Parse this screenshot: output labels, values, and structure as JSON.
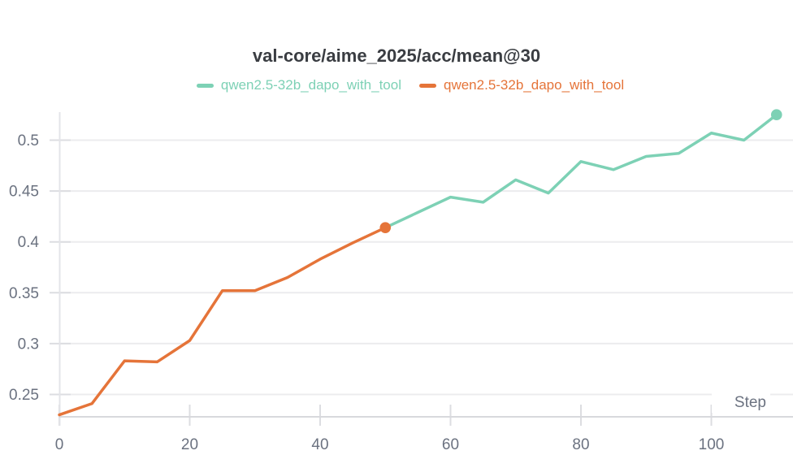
{
  "chart": {
    "title": "val-core/aime_2025/acc/mean@30",
    "x_axis_label": "Step"
  },
  "chart_data": {
    "type": "line",
    "title": "val-core/aime_2025/acc/mean@30",
    "xlabel": "Step",
    "ylabel": "",
    "xlim": [
      0,
      112.5
    ],
    "ylim": [
      0.225,
      0.53
    ],
    "x_ticks": [
      0,
      20,
      40,
      60,
      80,
      100
    ],
    "x_tick_labels": [
      "0",
      "20",
      "40",
      "60",
      "80",
      "100"
    ],
    "y_ticks": [
      0.25,
      0.3,
      0.35,
      0.4,
      0.45,
      0.5
    ],
    "y_tick_labels": [
      "0.25",
      "0.3",
      "0.35",
      "0.4",
      "0.45",
      "0.5"
    ],
    "grid": "horizontal-only",
    "legend_position": "top-center",
    "series": [
      {
        "name": "qwen2.5-32b_dapo_with_tool",
        "color": "#7dd1b5",
        "end_marker": true,
        "x": [
          50,
          55,
          60,
          65,
          70,
          75,
          80,
          85,
          90,
          95,
          100,
          105,
          110
        ],
        "y": [
          0.414,
          0.429,
          0.444,
          0.439,
          0.461,
          0.448,
          0.479,
          0.471,
          0.484,
          0.487,
          0.507,
          0.5,
          0.525
        ]
      },
      {
        "name": "qwen2.5-32b_dapo_with_tool",
        "color": "#e57439",
        "end_marker": true,
        "x": [
          0,
          5,
          10,
          15,
          20,
          25,
          30,
          35,
          40,
          45,
          50
        ],
        "y": [
          0.23,
          0.241,
          0.283,
          0.282,
          0.303,
          0.352,
          0.352,
          0.365,
          0.383,
          0.399,
          0.414
        ]
      }
    ]
  },
  "colors": {
    "background": "#ffffff",
    "title_text": "#3a3d42",
    "axis_text": "#6b7280",
    "gridline": "#ececee",
    "tick": "#dcdde1",
    "bottom_axis_line": "#d8d9dd",
    "y_axis_line": "#e3e4e8",
    "step_label_bg": "#ffffff"
  }
}
